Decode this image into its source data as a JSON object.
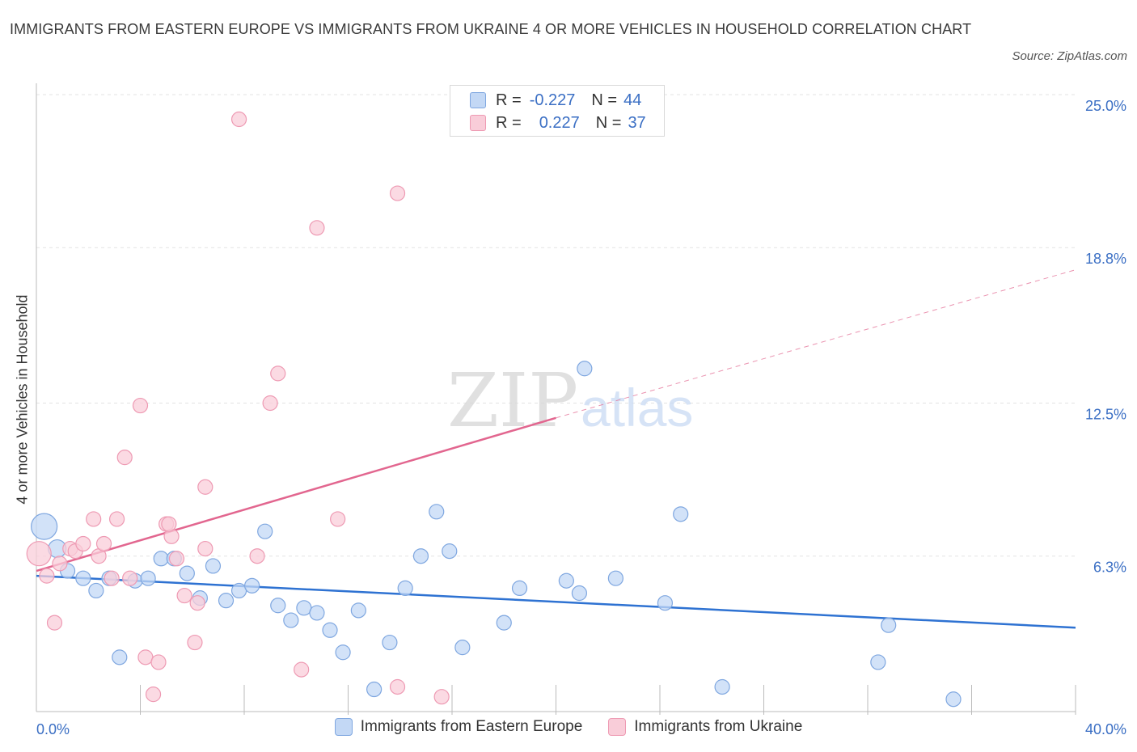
{
  "title": "IMMIGRANTS FROM EASTERN EUROPE VS IMMIGRANTS FROM UKRAINE 4 OR MORE VEHICLES IN HOUSEHOLD CORRELATION CHART",
  "source": "Source: ZipAtlas.com",
  "watermark": {
    "zip": "ZIP",
    "atlas": "atlas"
  },
  "legend": {
    "rows": [
      {
        "r_label": "R =",
        "r_value": "-0.227",
        "n_label": "N =",
        "n_value": "44",
        "color": "#a7c6f2"
      },
      {
        "r_label": "R =",
        "r_value": "0.227",
        "n_label": "N =",
        "n_value": "37",
        "color": "#f7b8cb"
      }
    ]
  },
  "colors": {
    "blue_fill": "#c3d8f5",
    "blue_stroke": "#7fa7e0",
    "blue_line": "#2e72d2",
    "pink_fill": "#f9cdd9",
    "pink_stroke": "#ee9ab3",
    "pink_line": "#e2668f",
    "tick_label": "#3b6fc4",
    "grid": "#e3e3e3"
  },
  "chart_data": {
    "type": "scatter",
    "title": "IMMIGRANTS FROM EASTERN EUROPE VS IMMIGRANTS FROM UKRAINE 4 OR MORE VEHICLES IN HOUSEHOLD CORRELATION CHART",
    "xlabel": "",
    "ylabel": "4 or more Vehicles in Household",
    "xlim": [
      0,
      40
    ],
    "ylim": [
      0,
      25
    ],
    "x_tick_labels": [
      "0.0%",
      "40.0%"
    ],
    "y_ticks": [
      6.3,
      12.5,
      18.8,
      25.0
    ],
    "y_tick_labels": [
      "6.3%",
      "12.5%",
      "18.8%",
      "25.0%"
    ],
    "grid": "horizontal dashed",
    "legend_position": "bottom",
    "series": [
      {
        "name": "Immigrants from Eastern Europe",
        "color": "#7fa7e0",
        "points": [
          [
            0.3,
            7.5,
            16
          ],
          [
            0.8,
            6.6,
            11
          ],
          [
            1.2,
            5.7,
            9
          ],
          [
            1.8,
            5.4,
            9
          ],
          [
            2.3,
            4.9,
            9
          ],
          [
            2.8,
            5.4,
            9
          ],
          [
            3.2,
            2.2,
            9
          ],
          [
            3.8,
            5.3,
            9
          ],
          [
            4.3,
            5.4,
            9
          ],
          [
            4.8,
            6.2,
            9
          ],
          [
            5.3,
            6.2,
            9
          ],
          [
            5.8,
            5.6,
            9
          ],
          [
            6.3,
            4.6,
            9
          ],
          [
            6.8,
            5.9,
            9
          ],
          [
            7.3,
            4.5,
            9
          ],
          [
            7.8,
            4.9,
            9
          ],
          [
            8.3,
            5.1,
            9
          ],
          [
            8.8,
            7.3,
            9
          ],
          [
            9.3,
            4.3,
            9
          ],
          [
            9.8,
            3.7,
            9
          ],
          [
            10.3,
            4.2,
            9
          ],
          [
            10.8,
            4.0,
            9
          ],
          [
            11.3,
            3.3,
            9
          ],
          [
            11.8,
            2.4,
            9
          ],
          [
            12.4,
            4.1,
            9
          ],
          [
            13.0,
            0.9,
            9
          ],
          [
            13.6,
            2.8,
            9
          ],
          [
            14.2,
            5.0,
            9
          ],
          [
            14.8,
            6.3,
            9
          ],
          [
            15.4,
            8.1,
            9
          ],
          [
            15.9,
            6.5,
            9
          ],
          [
            16.4,
            2.6,
            9
          ],
          [
            18.0,
            3.6,
            9
          ],
          [
            18.6,
            5.0,
            9
          ],
          [
            20.4,
            5.3,
            9
          ],
          [
            20.9,
            4.8,
            9
          ],
          [
            21.1,
            13.9,
            9
          ],
          [
            22.3,
            5.4,
            9
          ],
          [
            24.2,
            4.4,
            9
          ],
          [
            24.8,
            8.0,
            9
          ],
          [
            26.4,
            1.0,
            9
          ],
          [
            32.4,
            2.0,
            9
          ],
          [
            32.8,
            3.5,
            9
          ],
          [
            35.3,
            0.5,
            9
          ]
        ]
      },
      {
        "name": "Immigrants from Ukraine",
        "color": "#ee9ab3",
        "points": [
          [
            0.1,
            6.4,
            15
          ],
          [
            0.4,
            5.5,
            9
          ],
          [
            0.7,
            3.6,
            9
          ],
          [
            0.9,
            6.0,
            9
          ],
          [
            1.3,
            6.6,
            9
          ],
          [
            1.5,
            6.5,
            9
          ],
          [
            1.8,
            6.8,
            9
          ],
          [
            2.2,
            7.8,
            9
          ],
          [
            2.4,
            6.3,
            9
          ],
          [
            2.6,
            6.8,
            9
          ],
          [
            2.9,
            5.4,
            9
          ],
          [
            3.1,
            7.8,
            9
          ],
          [
            3.4,
            10.3,
            9
          ],
          [
            3.6,
            5.4,
            9
          ],
          [
            4.0,
            12.4,
            9
          ],
          [
            4.2,
            2.2,
            9
          ],
          [
            4.5,
            0.7,
            9
          ],
          [
            4.7,
            2.0,
            9
          ],
          [
            5.0,
            7.6,
            9
          ],
          [
            5.2,
            7.1,
            9
          ],
          [
            5.4,
            6.2,
            9
          ],
          [
            5.7,
            4.7,
            9
          ],
          [
            6.1,
            2.8,
            9
          ],
          [
            6.2,
            4.4,
            9
          ],
          [
            6.5,
            9.1,
            9
          ],
          [
            6.5,
            6.6,
            9
          ],
          [
            7.8,
            24.0,
            9
          ],
          [
            8.5,
            6.3,
            9
          ],
          [
            9.0,
            12.5,
            9
          ],
          [
            9.3,
            13.7,
            9
          ],
          [
            10.2,
            1.7,
            9
          ],
          [
            10.8,
            19.6,
            9
          ],
          [
            11.6,
            7.8,
            9
          ],
          [
            13.9,
            1.0,
            9
          ],
          [
            13.9,
            21.0,
            9
          ],
          [
            15.6,
            0.6,
            9
          ],
          [
            5.1,
            7.6,
            9
          ]
        ]
      }
    ],
    "trendlines": [
      {
        "series": "Immigrants from Eastern Europe",
        "x": [
          0,
          40
        ],
        "y": [
          5.5,
          3.4
        ]
      },
      {
        "series": "Immigrants from Ukraine",
        "x": [
          0,
          20
        ],
        "y": [
          5.7,
          11.9
        ],
        "dashed_extension": {
          "x": [
            20,
            40
          ],
          "y": [
            11.9,
            17.9
          ]
        }
      }
    ]
  },
  "bottom_legend": {
    "items": [
      {
        "label": "Immigrants from Eastern Europe"
      },
      {
        "label": "Immigrants from Ukraine"
      }
    ]
  }
}
